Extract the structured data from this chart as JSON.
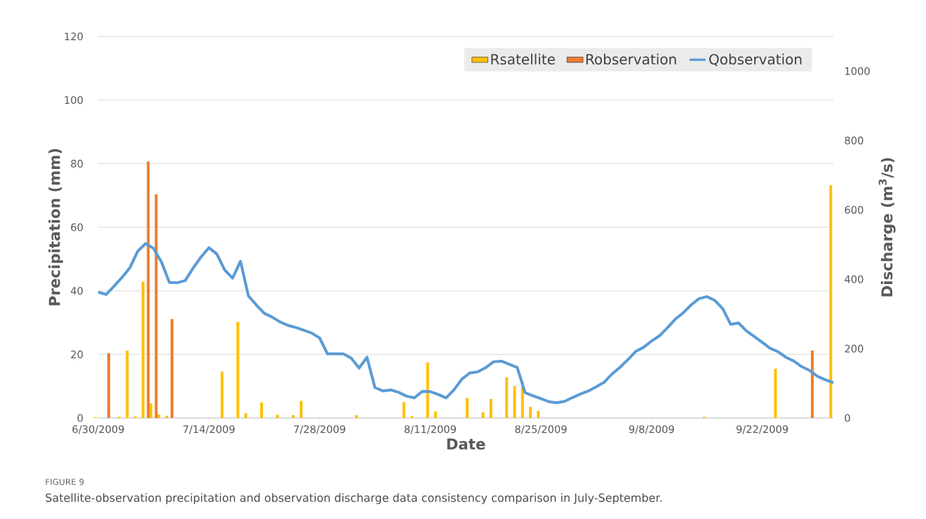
{
  "chart_data": {
    "type": "bar",
    "xlabel": "Date",
    "ylabel": "Precipitation (mm)",
    "y2label": "Discharge (m$^{3}$/s)",
    "xlim": [
      "2009-06-30",
      "2009-10-01"
    ],
    "xticks": [
      {
        "value": "2009-06-30",
        "label": "6/30/2009"
      },
      {
        "value": "2009-07-14",
        "label": "7/14/2009"
      },
      {
        "value": "2009-07-28",
        "label": "7/28/2009"
      },
      {
        "value": "2009-08-11",
        "label": "8/11/2009"
      },
      {
        "value": "2009-08-25",
        "label": "8/25/2009"
      },
      {
        "value": "2009-09-08",
        "label": "9/8/2009"
      },
      {
        "value": "2009-09-22",
        "label": "9/22/2009"
      }
    ],
    "ylim": [
      0,
      120
    ],
    "yticks": [
      0,
      20,
      40,
      60,
      80,
      100,
      120
    ],
    "y2lim": [
      0,
      1100
    ],
    "y2ticks": [
      0,
      200,
      400,
      600,
      800,
      1000
    ],
    "grid": "y",
    "legend": "top right",
    "series": [
      {
        "name": "Rsatellite",
        "color": "#ffc000",
        "x": [
          "2009-06-30",
          "2009-07-03",
          "2009-07-04",
          "2009-07-05",
          "2009-07-06",
          "2009-07-07",
          "2009-07-08",
          "2009-07-09",
          "2009-07-16",
          "2009-07-18",
          "2009-07-19",
          "2009-07-21",
          "2009-07-23",
          "2009-07-25",
          "2009-07-26",
          "2009-08-02",
          "2009-08-08",
          "2009-08-09",
          "2009-08-11",
          "2009-08-12",
          "2009-08-16",
          "2009-08-18",
          "2009-08-19",
          "2009-08-21",
          "2009-08-22",
          "2009-08-23",
          "2009-08-24",
          "2009-08-25",
          "2009-09-15",
          "2009-09-24",
          "2009-10-01"
        ],
        "values": [
          0.3,
          0.4,
          21.2,
          0.5,
          42.9,
          4.6,
          1.1,
          0.7,
          14.6,
          30.3,
          1.5,
          4.9,
          1.0,
          0.9,
          5.4,
          0.9,
          5.0,
          0.6,
          17.5,
          2.1,
          6.3,
          1.8,
          6.0,
          12.8,
          10.1,
          11.4,
          3.5,
          2.2,
          0.4,
          15.5,
          73.2
        ]
      },
      {
        "name": "Robservation",
        "color": "#ed7d31",
        "x": [
          "2009-07-01",
          "2009-07-06",
          "2009-07-07",
          "2009-07-09",
          "2009-09-28"
        ],
        "values": [
          20.4,
          80.7,
          70.3,
          31.1,
          21.2
        ]
      },
      {
        "name": "Qobservation",
        "type": "line",
        "axis": "y2",
        "color": "#5b9bd5",
        "x": [
          "2009-06-30",
          "2009-07-01",
          "2009-07-02",
          "2009-07-03",
          "2009-07-04",
          "2009-07-05",
          "2009-07-06",
          "2009-07-07",
          "2009-07-08",
          "2009-07-09",
          "2009-07-10",
          "2009-07-11",
          "2009-07-12",
          "2009-07-13",
          "2009-07-14",
          "2009-07-15",
          "2009-07-16",
          "2009-07-17",
          "2009-07-18",
          "2009-07-19",
          "2009-07-20",
          "2009-07-21",
          "2009-07-22",
          "2009-07-23",
          "2009-07-24",
          "2009-07-25",
          "2009-07-26",
          "2009-07-27",
          "2009-07-28",
          "2009-07-29",
          "2009-07-30",
          "2009-07-31",
          "2009-08-01",
          "2009-08-02",
          "2009-08-03",
          "2009-08-04",
          "2009-08-05",
          "2009-08-06",
          "2009-08-07",
          "2009-08-08",
          "2009-08-09",
          "2009-08-10",
          "2009-08-11",
          "2009-08-12",
          "2009-08-13",
          "2009-08-14",
          "2009-08-15",
          "2009-08-16",
          "2009-08-17",
          "2009-08-18",
          "2009-08-19",
          "2009-08-20",
          "2009-08-21",
          "2009-08-22",
          "2009-08-23",
          "2009-08-24",
          "2009-08-25",
          "2009-08-26",
          "2009-08-27",
          "2009-08-28",
          "2009-08-29",
          "2009-08-30",
          "2009-08-31",
          "2009-09-01",
          "2009-09-02",
          "2009-09-03",
          "2009-09-04",
          "2009-09-05",
          "2009-09-06",
          "2009-09-07",
          "2009-09-08",
          "2009-09-09",
          "2009-09-10",
          "2009-09-11",
          "2009-09-12",
          "2009-09-13",
          "2009-09-14",
          "2009-09-15",
          "2009-09-16",
          "2009-09-17",
          "2009-09-18",
          "2009-09-19",
          "2009-09-20",
          "2009-09-21",
          "2009-09-22",
          "2009-09-23",
          "2009-09-24",
          "2009-09-25",
          "2009-09-26",
          "2009-09-27",
          "2009-09-28",
          "2009-09-29",
          "2009-09-30",
          "2009-10-01"
        ],
        "values": [
          363,
          356,
          380,
          405,
          433,
          481,
          503,
          489,
          450,
          391,
          390,
          396,
          432,
          464,
          491,
          473,
          427,
          403,
          452,
          352,
          326,
          302,
          291,
          277,
          267,
          261,
          253,
          245,
          231,
          185,
          185,
          185,
          173,
          144,
          175,
          88,
          78,
          81,
          74,
          63,
          58,
          77,
          76,
          68,
          58,
          81,
          112,
          130,
          133,
          145,
          162,
          164,
          155,
          146,
          73,
          64,
          56,
          47,
          44,
          48,
          59,
          69,
          78,
          90,
          103,
          127,
          146,
          168,
          192,
          204,
          222,
          237,
          260,
          285,
          303,
          326,
          344,
          350,
          339,
          315,
          270,
          274,
          251,
          235,
          218,
          201,
          191,
          175,
          164,
          148,
          137,
          120,
          110,
          102
        ]
      }
    ],
    "annotations": [
      "FIGURE 9",
      "Satellite-observation precipitation and observation discharge data consistency comparison in July-September."
    ]
  }
}
